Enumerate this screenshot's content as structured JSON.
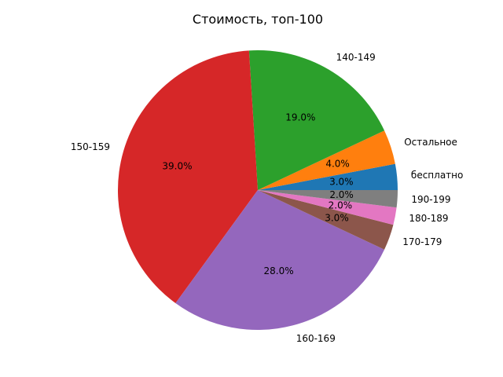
{
  "chart_data": {
    "type": "pie",
    "title": "Стоимость, топ-100",
    "labels": [
      "бесплатно",
      "Остальное",
      "140-149",
      "150-159",
      "160-169",
      "170-179",
      "180-189",
      "190-199"
    ],
    "values": [
      3.0,
      4.0,
      19.0,
      39.0,
      28.0,
      3.0,
      2.0,
      2.0
    ],
    "pct_labels": [
      "3.0%",
      "4.0%",
      "19.0%",
      "39.0%",
      "28.0%",
      "3.0%",
      "2.0%",
      "2.0%"
    ],
    "colors": [
      "#1f77b4",
      "#ff7f0e",
      "#2ca02c",
      "#d62728",
      "#9467bd",
      "#8c564b",
      "#e377c2",
      "#7f7f7f"
    ],
    "start_angle_deg": 0,
    "direction": "counterclockwise"
  }
}
